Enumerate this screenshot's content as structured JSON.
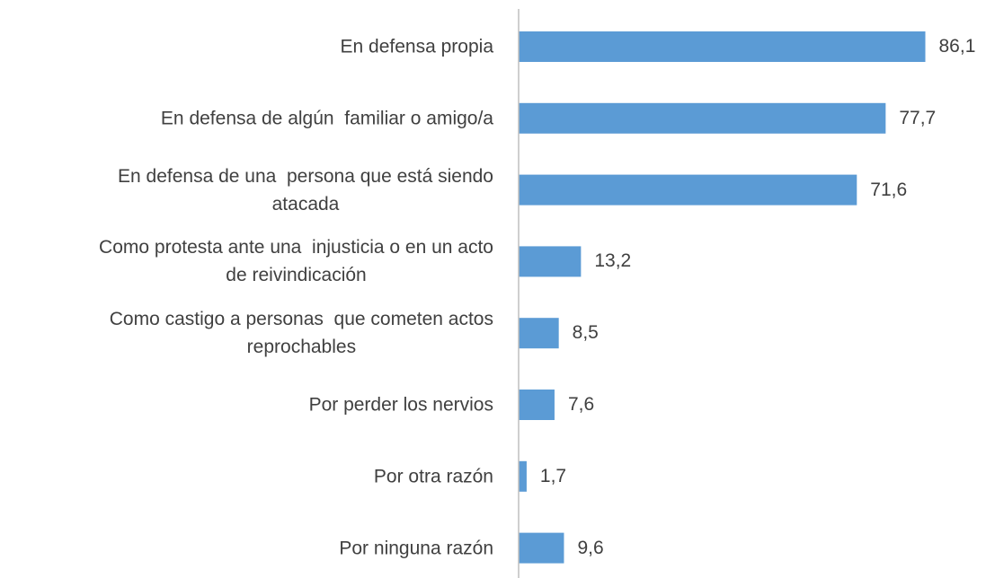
{
  "chart_data": {
    "type": "bar",
    "orientation": "horizontal",
    "categories": [
      "En defensa propia",
      "En defensa de algún  familiar o amigo/a",
      "En defensa de una  persona que está siendo\natacada",
      "Como protesta ante una  injusticia o en un acto\nde reivindicación",
      "Como castigo a personas  que cometen actos\nreprochables",
      "Por perder los nervios",
      "Por otra razón",
      "Por ninguna razón"
    ],
    "values": [
      86.1,
      77.7,
      71.6,
      13.2,
      8.5,
      7.6,
      1.7,
      9.6
    ],
    "value_labels": [
      "86,1",
      "77,7",
      "71,6",
      "13,2",
      "8,5",
      "7,6",
      "1,7",
      "9,6"
    ],
    "color": "#5b9bd5",
    "xlim": [
      0,
      90
    ]
  }
}
